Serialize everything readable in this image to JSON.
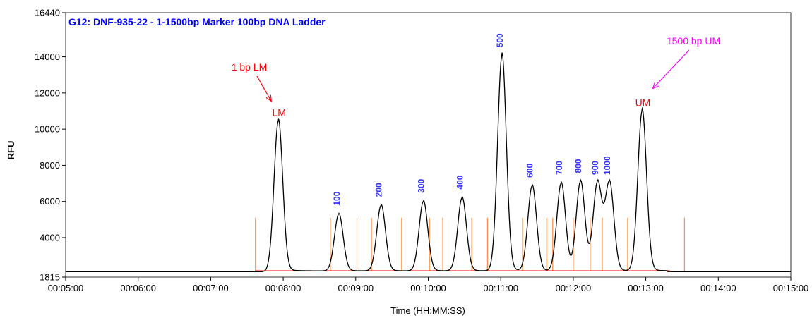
{
  "chart_data": {
    "type": "line",
    "title": "G12: DNF-935-22 - 1-1500bp Marker 100bp DNA Ladder",
    "xlabel": "Time (HH:MM:SS)",
    "ylabel": "RFU",
    "xlim": [
      "00:05:00",
      "00:15:00"
    ],
    "ylim": [
      1815,
      16440
    ],
    "x_ticks": [
      "00:05:00",
      "00:06:00",
      "00:07:00",
      "00:08:00",
      "00:09:00",
      "00:10:00",
      "00:11:00",
      "00:12:00",
      "00:13:00",
      "00:14:00",
      "00:15:00"
    ],
    "y_ticks": [
      1815,
      4000,
      6000,
      8000,
      10000,
      12000,
      14000,
      16440
    ],
    "baseline": 2160,
    "grid": false,
    "colors": {
      "trace": "#000000",
      "title": "#0000ff",
      "peak_label": "#3333ff",
      "marker_annotation": "#ff0000",
      "upper_marker_callout": "#ff00ff",
      "window_line": "#ff8c3c",
      "baseline": "#ff0000"
    },
    "peaks": [
      {
        "label": "LM",
        "time": "00:07:56",
        "rfu": 10450,
        "color": "#ff0000"
      },
      {
        "label": "100",
        "time": "00:08:46",
        "rfu": 5300,
        "color": "#3333ff"
      },
      {
        "label": "200",
        "time": "00:09:21",
        "rfu": 5780,
        "color": "#3333ff"
      },
      {
        "label": "300",
        "time": "00:09:56",
        "rfu": 6000,
        "color": "#3333ff"
      },
      {
        "label": "400",
        "time": "00:10:28",
        "rfu": 6200,
        "color": "#3333ff"
      },
      {
        "label": "500",
        "time": "00:11:01",
        "rfu": 14050,
        "color": "#3333ff"
      },
      {
        "label": "600",
        "time": "00:11:26",
        "rfu": 6850,
        "color": "#3333ff"
      },
      {
        "label": "700",
        "time": "00:11:50",
        "rfu": 7000,
        "color": "#3333ff"
      },
      {
        "label": "800",
        "time": "00:12:06",
        "rfu": 7100,
        "color": "#3333ff"
      },
      {
        "label": "900",
        "time": "00:12:20",
        "rfu": 7000,
        "color": "#3333ff"
      },
      {
        "label": "1000",
        "time": "00:12:30",
        "rfu": 7000,
        "color": "#3333ff"
      },
      {
        "label": "UM",
        "time": "00:12:57",
        "rfu": 11000,
        "color": "#ff0000"
      }
    ],
    "window_markers": [
      "00:07:37",
      "00:08:39",
      "00:09:01",
      "00:09:13",
      "00:09:38",
      "00:10:01",
      "00:10:12",
      "00:10:36",
      "00:10:49",
      "00:11:18",
      "00:11:38",
      "00:11:43",
      "00:12:00",
      "00:12:14",
      "00:12:24",
      "00:12:45",
      "00:13:32"
    ],
    "annotations": [
      {
        "text": "1 bp LM",
        "target_peak": "LM",
        "color": "#ff0000"
      },
      {
        "text": "1500 bp UM",
        "target_peak": "UM",
        "color": "#ff00ff"
      }
    ]
  }
}
